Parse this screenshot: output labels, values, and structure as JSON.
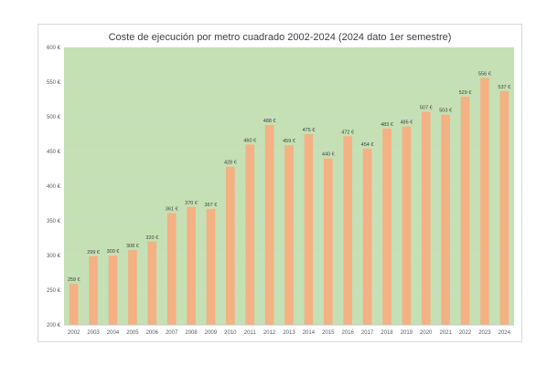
{
  "chart_data": {
    "type": "bar",
    "title": "Coste de ejecución por metro cuadrado 2002-2024 (2024 dato 1er semestre)",
    "xlabel": "",
    "ylabel": "",
    "categories": [
      "2002",
      "2003",
      "2004",
      "2005",
      "2006",
      "2007",
      "2008",
      "2009",
      "2010",
      "2011",
      "2012",
      "2013",
      "2014",
      "2015",
      "2016",
      "2017",
      "2018",
      "2019",
      "2020",
      "2021",
      "2022",
      "2023",
      "2024"
    ],
    "values": [
      259,
      299,
      300,
      308,
      320,
      361,
      370,
      367,
      428,
      460,
      488,
      459,
      475,
      440,
      472,
      454,
      483,
      486,
      507,
      503,
      529,
      556,
      537
    ],
    "value_labels": [
      "259 €",
      "299 €",
      "300 €",
      "308 €",
      "320 €",
      "361 €",
      "370 €",
      "367 €",
      "428 €",
      "460 €",
      "488 €",
      "459 €",
      "475 €",
      "440 €",
      "472 €",
      "454 €",
      "483 €",
      "486 €",
      "507 €",
      "503 €",
      "529 €",
      "556 €",
      "537 €"
    ],
    "ylim": [
      200,
      600
    ],
    "yticks": [
      200,
      250,
      300,
      350,
      400,
      450,
      500,
      550,
      600
    ],
    "ytick_labels": [
      "200 €",
      "250 €",
      "300 €",
      "350 €",
      "400 €",
      "450 €",
      "500 €",
      "550 €",
      "600 €"
    ],
    "grid": true,
    "legend": "none",
    "colors": {
      "bar": "#f4b183",
      "plot_background": "#c5e0b4",
      "gridline": "#d9d9d9"
    }
  }
}
